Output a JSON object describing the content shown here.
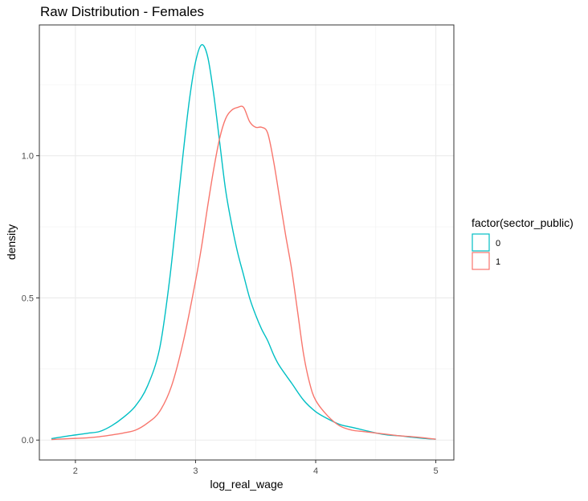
{
  "chart_data": {
    "type": "line",
    "title": "Raw Distribution - Females",
    "xlabel": "log_real_wage",
    "ylabel": "density",
    "xlim": [
      1.7,
      5.15
    ],
    "ylim": [
      -0.07,
      1.46
    ],
    "x_ticks": [
      2,
      3,
      4,
      5
    ],
    "x_tick_labels": [
      "2",
      "3",
      "4",
      "5"
    ],
    "y_ticks": [
      0,
      0.5,
      1
    ],
    "y_tick_labels": [
      "0.0",
      "0.5",
      "1.0"
    ],
    "grid": true,
    "legend": {
      "title": "factor(sector_public)",
      "position": "right"
    },
    "series": [
      {
        "name": "0",
        "color": "#00BFC4",
        "points": [
          [
            1.8,
            0.005
          ],
          [
            1.9,
            0.012
          ],
          [
            2.0,
            0.018
          ],
          [
            2.1,
            0.024
          ],
          [
            2.2,
            0.03
          ],
          [
            2.3,
            0.05
          ],
          [
            2.4,
            0.08
          ],
          [
            2.5,
            0.12
          ],
          [
            2.6,
            0.19
          ],
          [
            2.7,
            0.32
          ],
          [
            2.78,
            0.55
          ],
          [
            2.85,
            0.82
          ],
          [
            2.9,
            1.02
          ],
          [
            2.95,
            1.2
          ],
          [
            3.0,
            1.33
          ],
          [
            3.05,
            1.39
          ],
          [
            3.1,
            1.35
          ],
          [
            3.15,
            1.22
          ],
          [
            3.2,
            1.05
          ],
          [
            3.25,
            0.88
          ],
          [
            3.3,
            0.76
          ],
          [
            3.35,
            0.66
          ],
          [
            3.4,
            0.58
          ],
          [
            3.45,
            0.5
          ],
          [
            3.5,
            0.44
          ],
          [
            3.55,
            0.39
          ],
          [
            3.6,
            0.35
          ],
          [
            3.65,
            0.3
          ],
          [
            3.7,
            0.26
          ],
          [
            3.8,
            0.2
          ],
          [
            3.9,
            0.14
          ],
          [
            4.0,
            0.1
          ],
          [
            4.1,
            0.075
          ],
          [
            4.2,
            0.055
          ],
          [
            4.3,
            0.045
          ],
          [
            4.4,
            0.035
          ],
          [
            4.5,
            0.025
          ],
          [
            4.6,
            0.018
          ],
          [
            4.7,
            0.015
          ],
          [
            4.8,
            0.01
          ],
          [
            4.9,
            0.006
          ],
          [
            5.0,
            0.003
          ]
        ]
      },
      {
        "name": "1",
        "color": "#F8766D",
        "points": [
          [
            1.8,
            0.002
          ],
          [
            1.9,
            0.004
          ],
          [
            2.0,
            0.006
          ],
          [
            2.1,
            0.008
          ],
          [
            2.2,
            0.012
          ],
          [
            2.3,
            0.018
          ],
          [
            2.4,
            0.025
          ],
          [
            2.5,
            0.035
          ],
          [
            2.6,
            0.06
          ],
          [
            2.7,
            0.1
          ],
          [
            2.8,
            0.19
          ],
          [
            2.9,
            0.35
          ],
          [
            3.0,
            0.56
          ],
          [
            3.05,
            0.68
          ],
          [
            3.1,
            0.82
          ],
          [
            3.15,
            0.95
          ],
          [
            3.2,
            1.06
          ],
          [
            3.25,
            1.13
          ],
          [
            3.3,
            1.16
          ],
          [
            3.35,
            1.17
          ],
          [
            3.4,
            1.17
          ],
          [
            3.45,
            1.12
          ],
          [
            3.5,
            1.1
          ],
          [
            3.55,
            1.1
          ],
          [
            3.6,
            1.08
          ],
          [
            3.65,
            0.98
          ],
          [
            3.7,
            0.85
          ],
          [
            3.75,
            0.72
          ],
          [
            3.8,
            0.6
          ],
          [
            3.85,
            0.45
          ],
          [
            3.9,
            0.3
          ],
          [
            3.95,
            0.2
          ],
          [
            4.0,
            0.14
          ],
          [
            4.1,
            0.085
          ],
          [
            4.2,
            0.05
          ],
          [
            4.3,
            0.035
          ],
          [
            4.4,
            0.03
          ],
          [
            4.5,
            0.025
          ],
          [
            4.6,
            0.02
          ],
          [
            4.7,
            0.015
          ],
          [
            4.8,
            0.012
          ],
          [
            4.9,
            0.008
          ],
          [
            5.0,
            0.003
          ]
        ]
      }
    ]
  }
}
